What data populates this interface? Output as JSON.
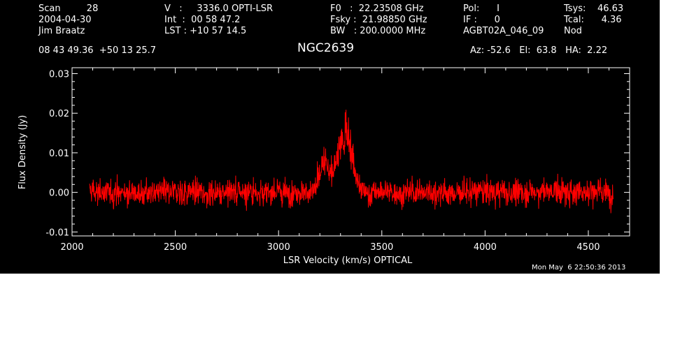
{
  "header": {
    "col1": [
      "Scan         28",
      "2004-04-30",
      "Jim Braatz"
    ],
    "col2": [
      "V   :     3336.0 OPTI-LSR",
      "Int  :  00 58 47.2",
      "LST : +10 57 14.5"
    ],
    "col3": [
      "F0   :  22.23508 GHz",
      "Fsky :  21.98850 GHz",
      "BW   : 200.0000 MHz"
    ],
    "col4": [
      "Pol:      I",
      "IF :      0",
      "AGBT02A_046_09"
    ],
    "col5": [
      "Tsys:    46.63",
      "Tcal:      4.36",
      "Nod"
    ],
    "coords": "08 43 49.36  +50 13 25.7",
    "source": "NGC2639",
    "azel": "Az: -52.6   El:  63.8   HA:  2.22"
  },
  "footer_timestamp": "Mon May  6 22:50:36 2013",
  "chart_data": {
    "type": "line",
    "xlabel": "LSR Velocity (km/s) OPTICAL",
    "ylabel": "Flux Density (Jy)",
    "xlim": [
      2000,
      4700
    ],
    "ylim": [
      -0.011,
      0.0315
    ],
    "x_ticks": [
      2000,
      2500,
      3000,
      3500,
      4000,
      4500
    ],
    "x_tick_labels": [
      "2000",
      "2500",
      "3000",
      "3500",
      "4000",
      "4500"
    ],
    "y_ticks": [
      -0.01,
      0.0,
      0.01,
      0.02,
      0.03
    ],
    "y_tick_labels": [
      "-0.01",
      "0.00",
      "0.01",
      "0.02",
      "0.03"
    ],
    "grid": false,
    "series": [
      {
        "color": "#ff0000",
        "x_range": [
          2085,
          4620
        ],
        "noise_sigma": 0.0022,
        "baseline": 0.0,
        "features": [
          {
            "x": 3340,
            "peak": 0.021
          },
          {
            "x": 3225,
            "peak": 0.013
          },
          {
            "x": 3300,
            "peak": 0.016
          }
        ]
      }
    ]
  },
  "colors": {
    "background": "#000000",
    "text": "#ffffff",
    "series": "#ff0000"
  }
}
